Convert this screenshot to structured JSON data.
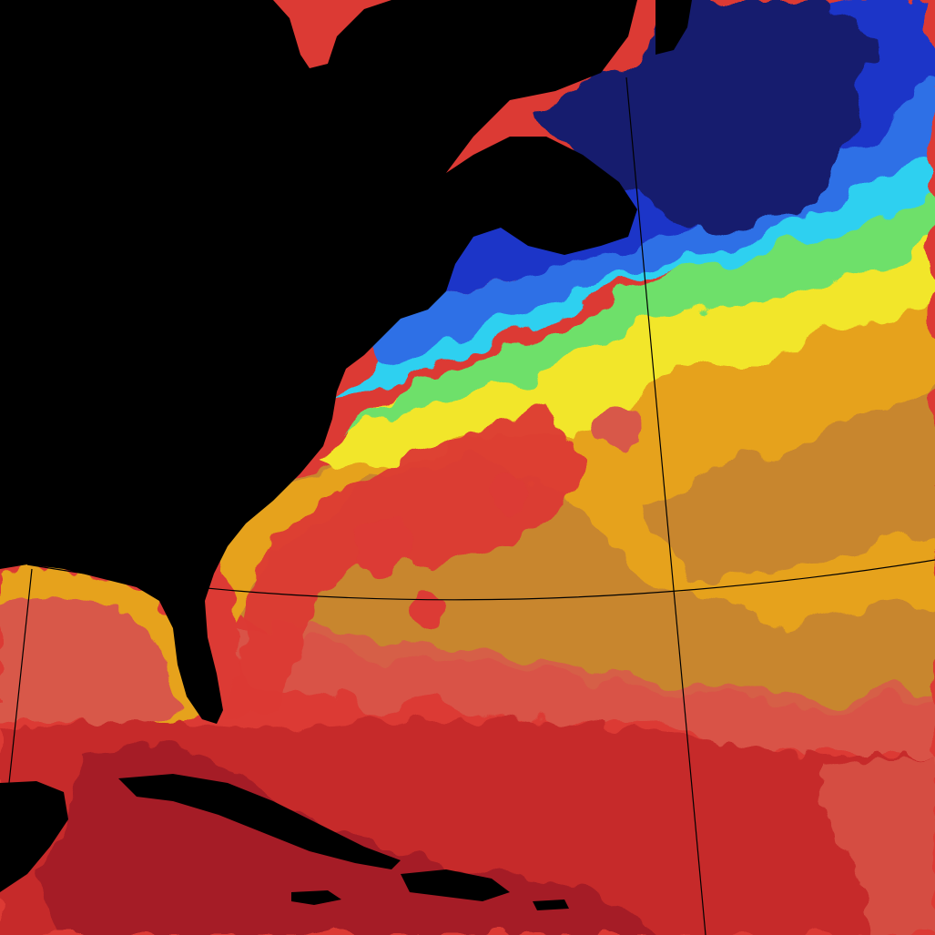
{
  "map": {
    "kind": "sea-surface-temperature",
    "projection_graticule": true,
    "labels_visible": false,
    "colors": {
      "land": "#000000",
      "very_cold": "#151a6e",
      "cold": "#1f36c8",
      "cool": "#2f6fe6",
      "cyan": "#2fd0f0",
      "green": "#6ee06a",
      "yellow": "#f2e62a",
      "orange": "#e6a21e",
      "tan": "#c8862e",
      "salmon": "#d8584a",
      "warm_red": "#dc3a34",
      "hot_red": "#c62a2a",
      "deep_red": "#a51e26",
      "graticule": "#000000"
    }
  }
}
